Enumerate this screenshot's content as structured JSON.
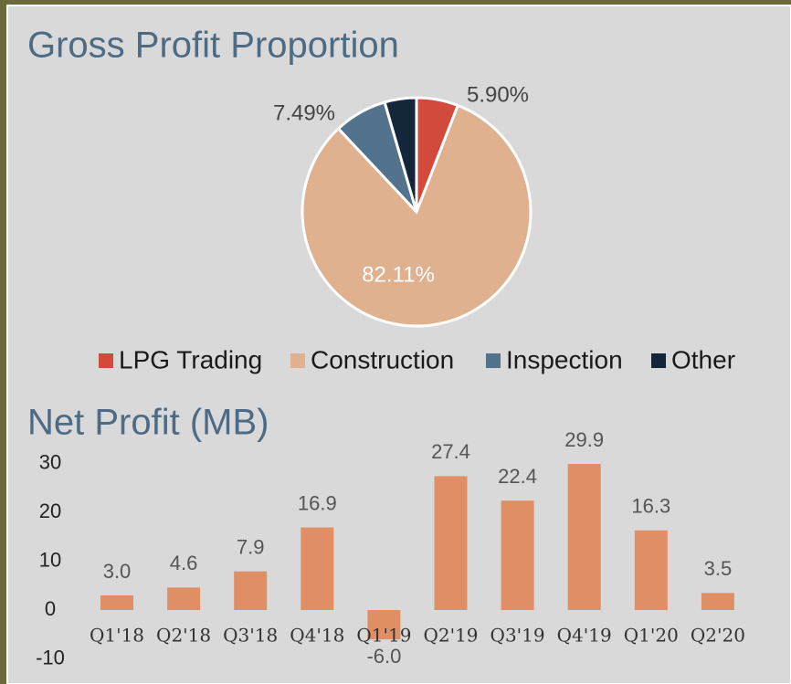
{
  "chart_data": [
    {
      "type": "pie",
      "title": "Gross Profit Proportion",
      "categories": [
        "LPG Trading",
        "Construction",
        "Inspection",
        "Other"
      ],
      "values": [
        5.9,
        82.11,
        7.49,
        4.5
      ],
      "value_labels": [
        "5.90%",
        "82.11%",
        "7.49%",
        null
      ],
      "colors": [
        "#d14a3b",
        "#dfb18f",
        "#53728e",
        "#13263a"
      ],
      "legend": "bottom"
    },
    {
      "type": "bar",
      "title": "Net Profit (MB)",
      "categories": [
        "Q1'18",
        "Q2'18",
        "Q3'18",
        "Q4'18",
        "Q1'19",
        "Q2'19",
        "Q3'19",
        "Q4'19",
        "Q1'20",
        "Q2'20"
      ],
      "values": [
        3.0,
        4.6,
        7.9,
        16.9,
        -6.0,
        27.4,
        22.4,
        29.9,
        16.3,
        3.5
      ],
      "value_labels": [
        "3.0",
        "4.6",
        "7.9",
        "16.9",
        "-6.0",
        "27.4",
        "22.4",
        "29.9",
        "16.3",
        "3.5"
      ],
      "color": "#e08f64",
      "ylim": [
        -10,
        30
      ],
      "yticks": [
        -10,
        0,
        10,
        20,
        30
      ],
      "grid": false
    }
  ]
}
